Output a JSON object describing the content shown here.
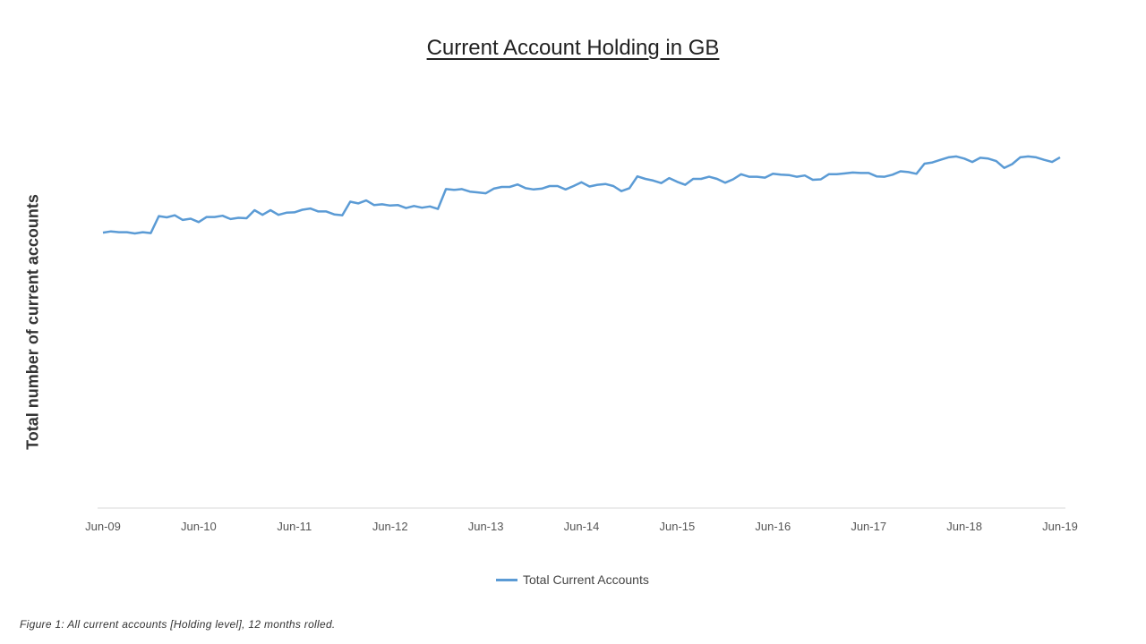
{
  "chart_data": {
    "type": "line",
    "title": "Current Account Holding in GB",
    "xlabel": "",
    "ylabel": "Total number of current accounts",
    "x_tick_labels": [
      "Jun-09",
      "Jun-10",
      "Jun-11",
      "Jun-12",
      "Jun-13",
      "Jun-14",
      "Jun-15",
      "Jun-16",
      "Jun-17",
      "Jun-18",
      "Jun-19"
    ],
    "x_start": "Jun-09",
    "x_end": "Jun-19",
    "y_axis_labels_shown": false,
    "grid": false,
    "legend_position": "bottom",
    "series": [
      {
        "name": "Total Current Accounts",
        "color": "#5b9bd5",
        "values": [
          65.1,
          65.4,
          65.2,
          65.2,
          64.9,
          65.2,
          65.0,
          69.0,
          68.7,
          69.2,
          68.1,
          68.4,
          67.6,
          68.8,
          68.8,
          69.1,
          68.3,
          68.6,
          68.5,
          70.4,
          69.3,
          70.4,
          69.3,
          69.8,
          69.9,
          70.5,
          70.8,
          70.1,
          70.1,
          69.4,
          69.2,
          72.4,
          72.0,
          72.7,
          71.6,
          71.8,
          71.5,
          71.6,
          70.9,
          71.4,
          71.0,
          71.3,
          70.7,
          75.4,
          75.2,
          75.4,
          74.8,
          74.6,
          74.4,
          75.5,
          75.9,
          75.9,
          76.5,
          75.6,
          75.3,
          75.5,
          76.1,
          76.1,
          75.3,
          76.1,
          77.0,
          76.0,
          76.4,
          76.6,
          76.1,
          74.9,
          75.6,
          78.4,
          77.8,
          77.4,
          76.8,
          78.0,
          77.1,
          76.4,
          77.8,
          77.8,
          78.3,
          77.8,
          76.9,
          77.7,
          78.9,
          78.3,
          78.3,
          78.1,
          79.0,
          78.8,
          78.7,
          78.3,
          78.6,
          77.6,
          77.7,
          78.9,
          78.9,
          79.1,
          79.3,
          79.2,
          79.2,
          78.4,
          78.3,
          78.8,
          79.6,
          79.4,
          79.0,
          81.4,
          81.7,
          82.3,
          82.9,
          83.1,
          82.6,
          81.8,
          82.8,
          82.6,
          82.0,
          80.4,
          81.3,
          82.9,
          83.1,
          82.9,
          82.3,
          81.8,
          82.9
        ]
      }
    ]
  },
  "caption": "Figure 1: All current accounts [Holding level], 12 months rolled."
}
